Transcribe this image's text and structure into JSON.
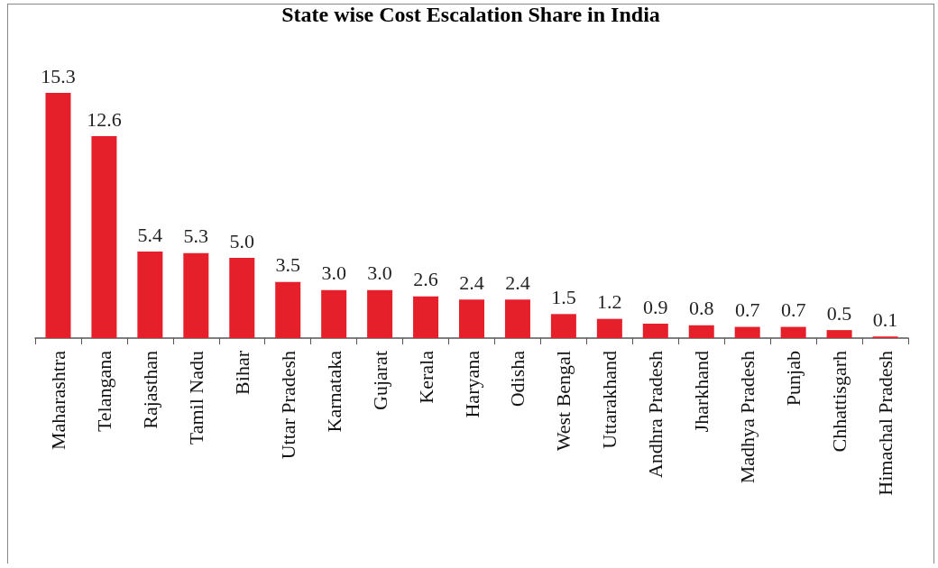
{
  "chart_data": {
    "type": "bar",
    "title": "State wise Cost Escalation Share in India",
    "categories": [
      "Maharashtra",
      "Telangana",
      "Rajasthan",
      "Tamil Nadu",
      "Bihar",
      "Uttar Pradesh",
      "Karnataka",
      "Gujarat",
      "Kerala",
      "Haryana",
      "Odisha",
      "West Bengal",
      "Uttarakhand",
      "Andhra Pradesh",
      "Jharkhand",
      "Madhya Pradesh",
      "Punjab",
      "Chhattisgarh",
      "Himachal Pradesh"
    ],
    "values": [
      15.3,
      12.6,
      5.4,
      5.3,
      5.0,
      3.5,
      3.0,
      3.0,
      2.6,
      2.4,
      2.4,
      1.5,
      1.2,
      0.9,
      0.8,
      0.7,
      0.7,
      0.5,
      0.1
    ],
    "value_labels": [
      "15.3",
      "12.6",
      "5.4",
      "5.3",
      "5.0",
      "3.5",
      "3.0",
      "3.0",
      "2.6",
      "2.4",
      "2.4",
      "1.5",
      "1.2",
      "0.9",
      "0.8",
      "0.7",
      "0.7",
      "0.5",
      "0.1"
    ],
    "color": "#e5202b",
    "grid": false
  }
}
